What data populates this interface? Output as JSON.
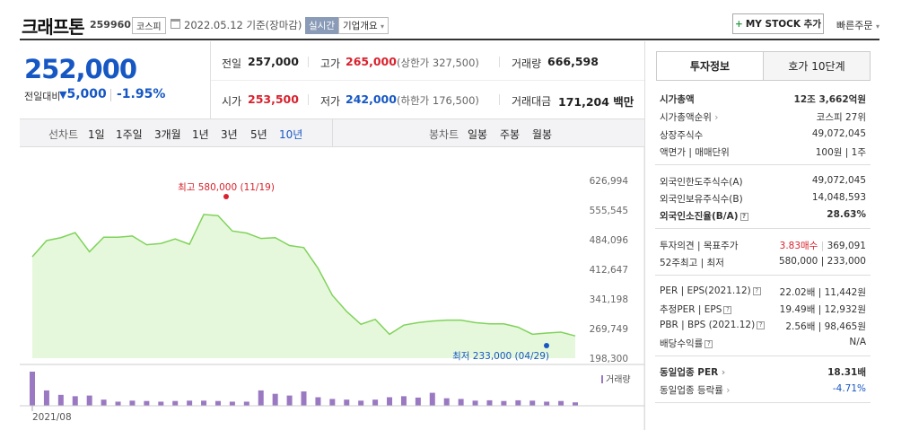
{
  "header": {
    "company": "크래프톤",
    "code": "259960",
    "market": "코스피",
    "date": "2022.05.12 기준(장마감)",
    "realtime": "실시간",
    "overview": "기업개요",
    "mystock": "MY STOCK 추가",
    "quick_order": "빠른주문"
  },
  "price": {
    "current": "252,000",
    "change_label": "전일대비",
    "change": "5,000",
    "change_rate": "-1.95%",
    "change_direction": "down"
  },
  "stats": {
    "prev_close_label": "전일",
    "prev_close": "257,000",
    "high_label": "고가",
    "high": "265,000",
    "upper_limit": "(상한가 327,500)",
    "volume_label": "거래량",
    "volume": "666,598",
    "open_label": "시가",
    "open": "253,500",
    "low_label": "저가",
    "low": "242,000",
    "lower_limit": "(하한가 176,500)",
    "amount_label": "거래대금",
    "amount": "171,204 백만"
  },
  "period_bar": {
    "line_label": "선차트",
    "periods": [
      "1일",
      "1주일",
      "3개월",
      "1년",
      "3년",
      "5년",
      "10년"
    ],
    "active_period": "10년",
    "candle_label": "봉차트",
    "candles": [
      "일봉",
      "주봉",
      "월봉"
    ]
  },
  "chart_data": {
    "type": "area",
    "y_ticks": [
      "626,994",
      "555,545",
      "484,096",
      "412,647",
      "341,198",
      "269,749",
      "198,300"
    ],
    "ylim": [
      198300,
      626994
    ],
    "x_tick": "2021/08",
    "high_label": "최고 580,000 (11/19)",
    "low_label": "최저 233,000 (04/29)",
    "series": [
      {
        "values": [
          443000,
          482000,
          489000,
          501000,
          455000,
          490000,
          490000,
          493000,
          472000,
          475000,
          486000,
          473000,
          545000,
          542000,
          505000,
          500000,
          487000,
          489000,
          470000,
          465000,
          415000,
          350000,
          311000,
          280000,
          292000,
          256000,
          278000,
          284000,
          288000,
          290000,
          290000,
          284000,
          281000,
          281000,
          273000,
          256000,
          259000,
          261000,
          252000
        ]
      }
    ],
    "volume_label": "거래량",
    "volume": [
      1.0,
      0.45,
      0.32,
      0.28,
      0.3,
      0.18,
      0.12,
      0.15,
      0.14,
      0.12,
      0.14,
      0.15,
      0.15,
      0.14,
      0.12,
      0.12,
      0.45,
      0.35,
      0.3,
      0.42,
      0.25,
      0.2,
      0.18,
      0.15,
      0.18,
      0.25,
      0.28,
      0.24,
      0.38,
      0.22,
      0.2,
      0.15,
      0.16,
      0.14,
      0.16,
      0.15,
      0.12,
      0.14,
      0.1
    ]
  },
  "right_panel": {
    "tab_active": "투자정보",
    "tab_other": "호가 10단계",
    "rows1": [
      {
        "label": "시가총액",
        "value": "12조 3,662억원",
        "bold": true
      },
      {
        "label": "시가총액순위",
        "value": "코스피 27위"
      },
      {
        "label": "상장주식수",
        "value": "49,072,045"
      },
      {
        "label": "액면가 | 매매단위",
        "value": "100원 | 1주"
      }
    ],
    "rows2": [
      {
        "label": "외국인한도주식수(A)",
        "value": "49,072,045"
      },
      {
        "label": "외국인보유주식수(B)",
        "value": "14,048,593"
      },
      {
        "label": "외국인소진율(B/A)",
        "value": "28.63%",
        "bold": true
      }
    ],
    "opinion_label": "투자의견 | 목표주가",
    "opinion": "3.83매수",
    "target": "369,091",
    "week52_label": "52주최고 | 최저",
    "week52": "580,000 | 233,000",
    "rows3": [
      {
        "label": "PER | EPS(2021.12)",
        "value": "22.02배 | 11,442원"
      },
      {
        "label": "추정PER | EPS",
        "value": "19.49배 | 12,932원"
      },
      {
        "label": "PBR | BPS (2021.12)",
        "value": "2.56배 | 98,465원"
      },
      {
        "label": "배당수익률",
        "value": "N/A"
      }
    ],
    "industry_per_label": "동일업종 PER",
    "industry_per": "18.31배",
    "industry_rate_label": "동일업종 등락률",
    "industry_rate": "-4.71%"
  },
  "colors": {
    "up": "#d8222d",
    "down": "#1657c4",
    "area_line": "#7fd35a",
    "area_fill": "#e6f8dc",
    "volume": "#9a79c2"
  }
}
